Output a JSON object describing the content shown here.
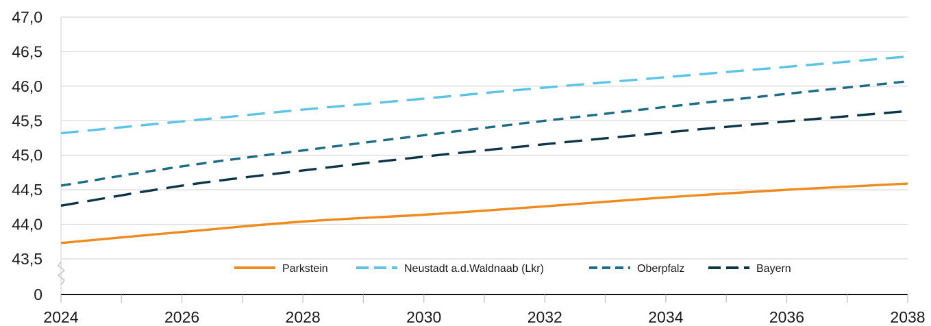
{
  "chart_data": {
    "type": "line",
    "title": "",
    "xlabel": "",
    "ylabel": "",
    "x": [
      2024,
      2026,
      2028,
      2030,
      2032,
      2034,
      2036,
      2038
    ],
    "x_ticks": [
      "2024",
      "2026",
      "2028",
      "2030",
      "2032",
      "2034",
      "2036",
      "2038"
    ],
    "y_axis_break": true,
    "y_ticks": [
      {
        "value": 0,
        "label": "0"
      },
      {
        "value": 43.5,
        "label": "43,5"
      },
      {
        "value": 44.0,
        "label": "44,0"
      },
      {
        "value": 44.5,
        "label": "44,5"
      },
      {
        "value": 45.0,
        "label": "45,0"
      },
      {
        "value": 45.5,
        "label": "45,5"
      },
      {
        "value": 46.0,
        "label": "46,0"
      },
      {
        "value": 46.5,
        "label": "46,5"
      },
      {
        "value": 47.0,
        "label": "47,0"
      }
    ],
    "ylim": [
      43.5,
      47.0
    ],
    "grid": true,
    "legend_position": "bottom-center",
    "series": [
      {
        "name": "Parkstein",
        "color": "#ef8a1e",
        "style": "solid",
        "values": [
          43.73,
          43.89,
          44.04,
          44.14,
          44.26,
          44.39,
          44.5,
          44.59
        ]
      },
      {
        "name": "Neustadt a.d.Waldnaab (Lkr)",
        "color": "#5bc4e6",
        "style": "long-dash",
        "values": [
          45.32,
          45.49,
          45.66,
          45.82,
          45.98,
          46.13,
          46.28,
          46.43
        ]
      },
      {
        "name": "Oberpfalz",
        "color": "#1c6b87",
        "style": "dash",
        "values": [
          44.56,
          44.84,
          45.07,
          45.29,
          45.5,
          45.7,
          45.89,
          46.07
        ]
      },
      {
        "name": "Bayern",
        "color": "#0d3548",
        "style": "long-dash",
        "values": [
          44.27,
          44.56,
          44.78,
          44.98,
          45.16,
          45.33,
          45.49,
          45.64
        ]
      }
    ]
  }
}
